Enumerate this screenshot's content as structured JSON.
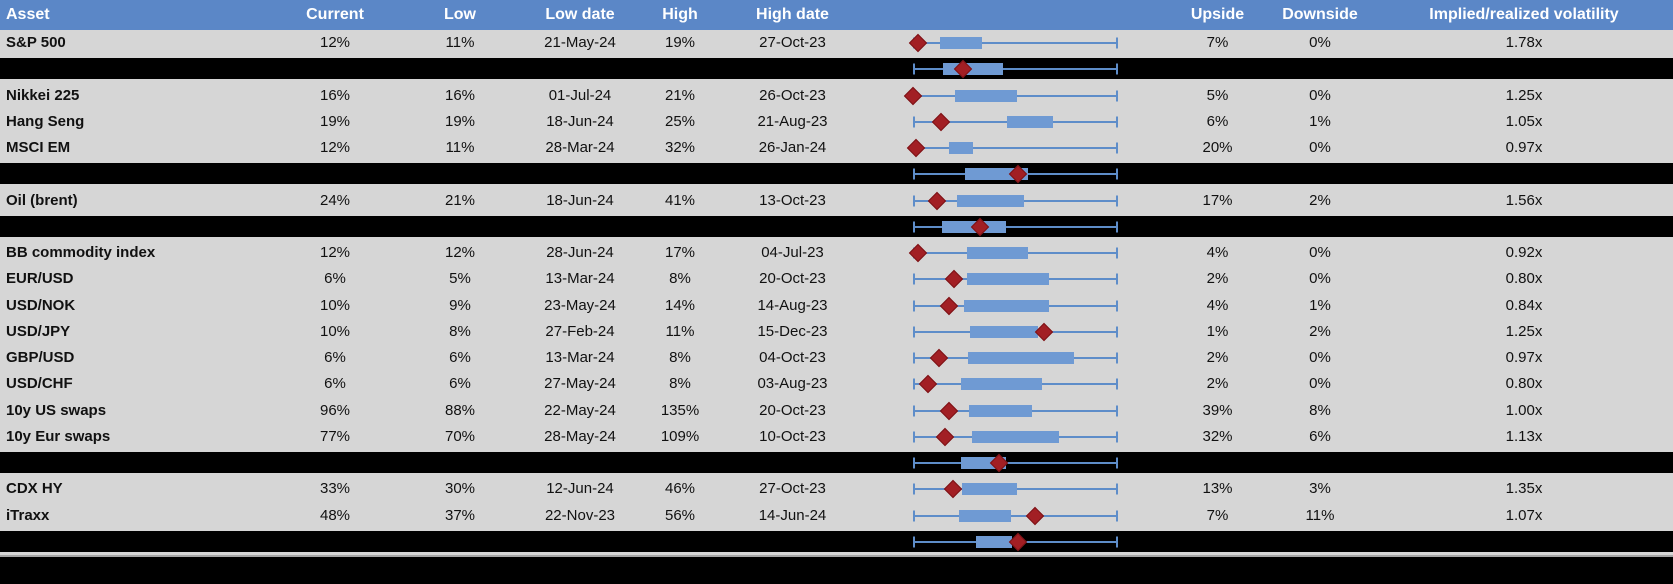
{
  "title": "Asset volatility ranges table",
  "colors": {
    "header_blue": "#5b87c7",
    "row_gray": "#d6d6d6",
    "separator_black": "#000000",
    "box_blue": "#6f9ad3",
    "whisker_blue": "#5e8dc9",
    "diamond_red": "#a21f24",
    "divider_gray": "#a6a6a6"
  },
  "header": {
    "columns": [
      "Asset",
      "Current",
      "Low",
      "Low date",
      "High",
      "High date",
      "",
      "Upside",
      "Downside",
      "Implied/realized volatility"
    ]
  },
  "chart_data": {
    "type": "table",
    "title": "Implied volatility: current vs 1-year range with box-whisker position plots",
    "legend_position": "none",
    "grid": false,
    "plot_note": "Each row shows a horizontal whisker spanning the full low-high range (normalized 0-1), a blue box for the interquartile range (box_start/box_end) and a dark-red diamond marker (marker) for the current level. Black separator rows show aggregate box plots.",
    "axis_range": [
      0,
      1
    ],
    "rows": [
      {
        "separator": false,
        "name": "S&P 500",
        "current": "12%",
        "low": "11%",
        "low_date": "21-May-24",
        "high": "19%",
        "high_date": "27-Oct-23",
        "upside": "7%",
        "downside": "0%",
        "implied_realized": "1.78x",
        "box_start": 0.132,
        "box_end": 0.337,
        "marker": 0.024
      },
      {
        "separator": true,
        "box_start": 0.146,
        "box_end": 0.439,
        "marker": 0.244
      },
      {
        "separator": false,
        "name": "Nikkei 225",
        "current": "16%",
        "low": "16%",
        "low_date": "01-Jul-24",
        "high": "21%",
        "high_date": "26-Oct-23",
        "upside": "5%",
        "downside": "0%",
        "implied_realized": "1.25x",
        "box_start": 0.205,
        "box_end": 0.507,
        "marker": 0.0
      },
      {
        "separator": false,
        "name": "Hang Seng",
        "current": "19%",
        "low": "19%",
        "low_date": "18-Jun-24",
        "high": "25%",
        "high_date": "21-Aug-23",
        "upside": "6%",
        "downside": "1%",
        "implied_realized": "1.05x",
        "box_start": 0.459,
        "box_end": 0.683,
        "marker": 0.137
      },
      {
        "separator": false,
        "name": "MSCI EM",
        "current": "12%",
        "low": "11%",
        "low_date": "28-Mar-24",
        "high": "32%",
        "high_date": "26-Jan-24",
        "upside": "20%",
        "downside": "0%",
        "implied_realized": "0.97x",
        "box_start": 0.176,
        "box_end": 0.293,
        "marker": 0.015
      },
      {
        "separator": true,
        "box_start": 0.254,
        "box_end": 0.561,
        "marker": 0.512
      },
      {
        "separator": false,
        "name": "Oil (brent)",
        "current": "24%",
        "low": "21%",
        "low_date": "18-Jun-24",
        "high": "41%",
        "high_date": "13-Oct-23",
        "upside": "17%",
        "downside": "2%",
        "implied_realized": "1.56x",
        "box_start": 0.215,
        "box_end": 0.541,
        "marker": 0.117
      },
      {
        "separator": true,
        "box_start": 0.141,
        "box_end": 0.454,
        "marker": 0.327
      },
      {
        "separator": false,
        "name": "BB commodity index",
        "current": "12%",
        "low": "12%",
        "low_date": "28-Jun-24",
        "high": "17%",
        "high_date": "04-Jul-23",
        "upside": "4%",
        "downside": "0%",
        "implied_realized": "0.92x",
        "box_start": 0.263,
        "box_end": 0.561,
        "marker": 0.024
      },
      {
        "separator": false,
        "name": "EUR/USD",
        "current": "6%",
        "low": "5%",
        "low_date": "13-Mar-24",
        "high": "8%",
        "high_date": "20-Oct-23",
        "upside": "2%",
        "downside": "0%",
        "implied_realized": "0.80x",
        "box_start": 0.263,
        "box_end": 0.663,
        "marker": 0.2
      },
      {
        "separator": false,
        "name": "USD/NOK",
        "current": "10%",
        "low": "9%",
        "low_date": "23-May-24",
        "high": "14%",
        "high_date": "14-Aug-23",
        "upside": "4%",
        "downside": "1%",
        "implied_realized": "0.84x",
        "box_start": 0.249,
        "box_end": 0.663,
        "marker": 0.176
      },
      {
        "separator": false,
        "name": "USD/JPY",
        "current": "10%",
        "low": "8%",
        "low_date": "27-Feb-24",
        "high": "11%",
        "high_date": "15-Dec-23",
        "upside": "1%",
        "downside": "2%",
        "implied_realized": "1.25x",
        "box_start": 0.278,
        "box_end": 0.61,
        "marker": 0.639
      },
      {
        "separator": false,
        "name": "GBP/USD",
        "current": "6%",
        "low": "6%",
        "low_date": "13-Mar-24",
        "high": "8%",
        "high_date": "04-Oct-23",
        "upside": "2%",
        "downside": "0%",
        "implied_realized": "0.97x",
        "box_start": 0.268,
        "box_end": 0.785,
        "marker": 0.127
      },
      {
        "separator": false,
        "name": "USD/CHF",
        "current": "6%",
        "low": "6%",
        "low_date": "27-May-24",
        "high": "8%",
        "high_date": "03-Aug-23",
        "upside": "2%",
        "downside": "0%",
        "implied_realized": "0.80x",
        "box_start": 0.234,
        "box_end": 0.629,
        "marker": 0.073
      },
      {
        "separator": false,
        "name": "10y US swaps",
        "current": "96%",
        "low": "88%",
        "low_date": "22-May-24",
        "high": "135%",
        "high_date": "20-Oct-23",
        "upside": "39%",
        "downside": "8%",
        "implied_realized": "1.00x",
        "box_start": 0.273,
        "box_end": 0.58,
        "marker": 0.176
      },
      {
        "separator": false,
        "name": "10y Eur swaps",
        "current": "77%",
        "low": "70%",
        "low_date": "28-May-24",
        "high": "109%",
        "high_date": "10-Oct-23",
        "upside": "32%",
        "downside": "6%",
        "implied_realized": "1.13x",
        "box_start": 0.288,
        "box_end": 0.712,
        "marker": 0.156
      },
      {
        "separator": true,
        "box_start": 0.234,
        "box_end": 0.454,
        "marker": 0.42
      },
      {
        "separator": false,
        "name": "CDX HY",
        "current": "33%",
        "low": "30%",
        "low_date": "12-Jun-24",
        "high": "46%",
        "high_date": "27-Oct-23",
        "upside": "13%",
        "downside": "3%",
        "implied_realized": "1.35x",
        "box_start": 0.239,
        "box_end": 0.507,
        "marker": 0.195
      },
      {
        "separator": false,
        "name": "iTraxx",
        "current": "48%",
        "low": "37%",
        "low_date": "22-Nov-23",
        "high": "56%",
        "high_date": "14-Jun-24",
        "upside": "7%",
        "downside": "11%",
        "implied_realized": "1.07x",
        "box_start": 0.224,
        "box_end": 0.478,
        "marker": 0.595
      },
      {
        "separator": true,
        "box_start": 0.307,
        "box_end": 0.483,
        "marker": 0.512
      }
    ]
  }
}
